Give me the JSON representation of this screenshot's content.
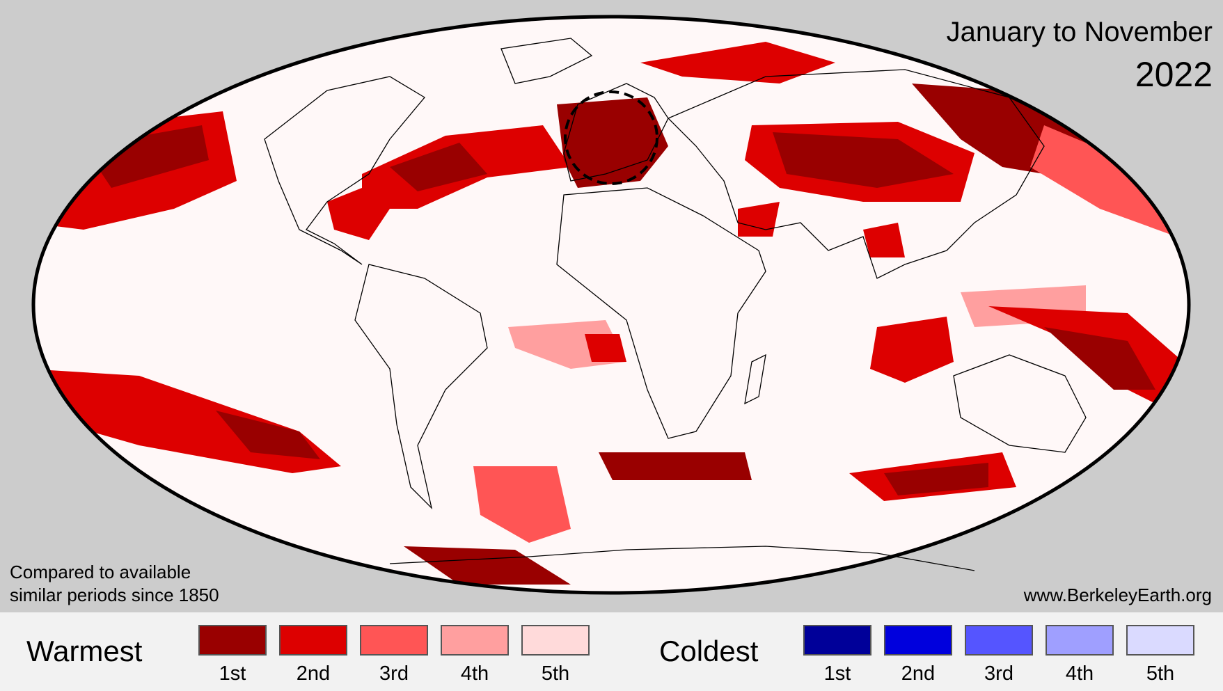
{
  "header": {
    "period": "January to November",
    "year": "2022"
  },
  "notes": {
    "line1": "Compared to available",
    "line2": "similar periods since 1850",
    "credit": "www.BerkeleyEarth.org"
  },
  "legend": {
    "warm_title": "Warmest",
    "cold_title": "Coldest",
    "warm": [
      {
        "rank": "1st",
        "color": "#990000"
      },
      {
        "rank": "2nd",
        "color": "#dd0000"
      },
      {
        "rank": "3rd",
        "color": "#ff5555"
      },
      {
        "rank": "4th",
        "color": "#ff9f9f"
      },
      {
        "rank": "5th",
        "color": "#ffdada"
      }
    ],
    "cold": [
      {
        "rank": "1st",
        "color": "#000099"
      },
      {
        "rank": "2nd",
        "color": "#0000dd"
      },
      {
        "rank": "3rd",
        "color": "#5555ff"
      },
      {
        "rank": "4th",
        "color": "#9f9fff"
      },
      {
        "rank": "5th",
        "color": "#dadaff"
      }
    ]
  },
  "map": {
    "projection": "Mollweide world map",
    "ocean_land_base_color": "#fff8f8",
    "outline_color": "#000000",
    "highlight": "dashed circle over Western Europe"
  }
}
